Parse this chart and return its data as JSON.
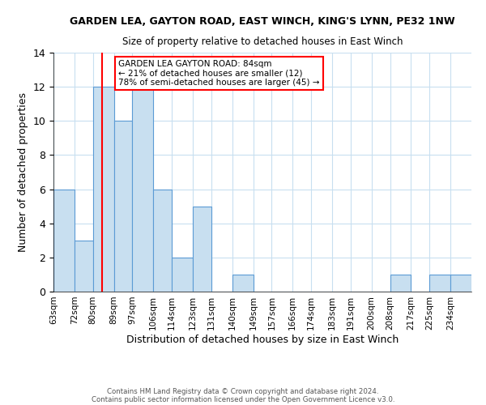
{
  "title": "GARDEN LEA, GAYTON ROAD, EAST WINCH, KING'S LYNN, PE32 1NW",
  "subtitle": "Size of property relative to detached houses in East Winch",
  "xlabel": "Distribution of detached houses by size in East Winch",
  "ylabel": "Number of detached properties",
  "footnote1": "Contains HM Land Registry data © Crown copyright and database right 2024.",
  "footnote2": "Contains public sector information licensed under the Open Government Licence v3.0.",
  "bin_edges": [
    63,
    72,
    80,
    89,
    97,
    106,
    114,
    123,
    131,
    140,
    149,
    157,
    166,
    174,
    183,
    191,
    200,
    208,
    217,
    225,
    234,
    243
  ],
  "bin_labels": [
    "63sqm",
    "72sqm",
    "80sqm",
    "89sqm",
    "97sqm",
    "106sqm",
    "114sqm",
    "123sqm",
    "131sqm",
    "140sqm",
    "149sqm",
    "157sqm",
    "166sqm",
    "174sqm",
    "183sqm",
    "191sqm",
    "200sqm",
    "208sqm",
    "217sqm",
    "225sqm",
    "234sqm"
  ],
  "counts": [
    6,
    3,
    12,
    10,
    12,
    6,
    2,
    5,
    0,
    1,
    0,
    0,
    0,
    0,
    0,
    0,
    0,
    1,
    0,
    1,
    1
  ],
  "bar_color": "#c8dff0",
  "bar_edgecolor": "#5b9bd5",
  "red_line_x": 84,
  "annotation_title": "GARDEN LEA GAYTON ROAD: 84sqm",
  "annotation_line2": "← 21% of detached houses are smaller (12)",
  "annotation_line3": "78% of semi-detached houses are larger (45) →",
  "ylim": [
    0,
    14
  ],
  "background_color": "#ffffff",
  "grid_color": "#c8dff0"
}
